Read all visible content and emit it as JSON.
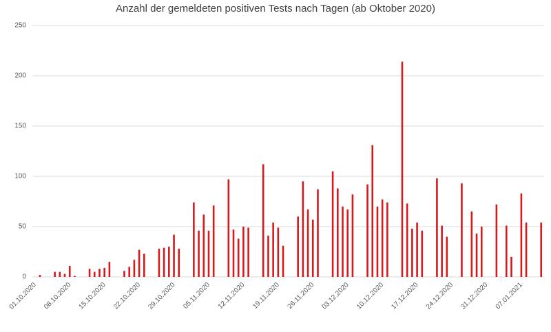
{
  "chart_data": {
    "type": "bar",
    "title": "Anzahl der gemeldeten positiven Tests nach Tagen (ab Oktober 2020)",
    "categories": [
      "01.10.2020",
      null,
      null,
      null,
      null,
      null,
      null,
      "08.10.2020",
      null,
      null,
      null,
      null,
      null,
      null,
      "15.10.2020",
      null,
      null,
      null,
      null,
      null,
      null,
      "22.10.2020",
      null,
      null,
      null,
      null,
      null,
      null,
      "29.10.2020",
      null,
      null,
      null,
      null,
      null,
      null,
      "05.11.2020",
      null,
      null,
      null,
      null,
      null,
      null,
      "12.11.2020",
      null,
      null,
      null,
      null,
      null,
      null,
      "19.11.2020",
      null,
      null,
      null,
      null,
      null,
      null,
      "26.11.2020",
      null,
      null,
      null,
      null,
      null,
      null,
      "03.12.2020",
      null,
      null,
      null,
      null,
      null,
      null,
      "10.12.2020",
      null,
      null,
      null,
      null,
      null,
      null,
      "17.12.2020",
      null,
      null,
      null,
      null,
      null,
      null,
      "24.12.2020",
      null,
      null,
      null,
      null,
      null,
      null,
      "31.12.2020",
      null,
      null,
      null,
      null,
      null,
      null,
      "07.01.2021",
      null,
      null,
      null,
      null
    ],
    "values": [
      null,
      2,
      null,
      null,
      5,
      5,
      3,
      11,
      1,
      null,
      null,
      8,
      5,
      8,
      9,
      15,
      null,
      null,
      6,
      10,
      17,
      27,
      23,
      null,
      null,
      28,
      29,
      30,
      42,
      28,
      null,
      null,
      74,
      46,
      62,
      46,
      71,
      null,
      null,
      97,
      47,
      38,
      50,
      49,
      null,
      null,
      112,
      41,
      54,
      49,
      31,
      null,
      null,
      60,
      95,
      67,
      57,
      87,
      null,
      null,
      105,
      88,
      70,
      67,
      82,
      null,
      null,
      92,
      131,
      70,
      77,
      74,
      null,
      null,
      214,
      73,
      48,
      54,
      46,
      null,
      null,
      98,
      51,
      40,
      null,
      null,
      93,
      null,
      65,
      43,
      50,
      null,
      null,
      72,
      null,
      51,
      20,
      null,
      83,
      54,
      null,
      null,
      54
    ],
    "color": "#d7191c",
    "ylim": [
      0,
      250
    ],
    "yticks": [
      0,
      50,
      100,
      150,
      200,
      250
    ],
    "grid": true
  }
}
